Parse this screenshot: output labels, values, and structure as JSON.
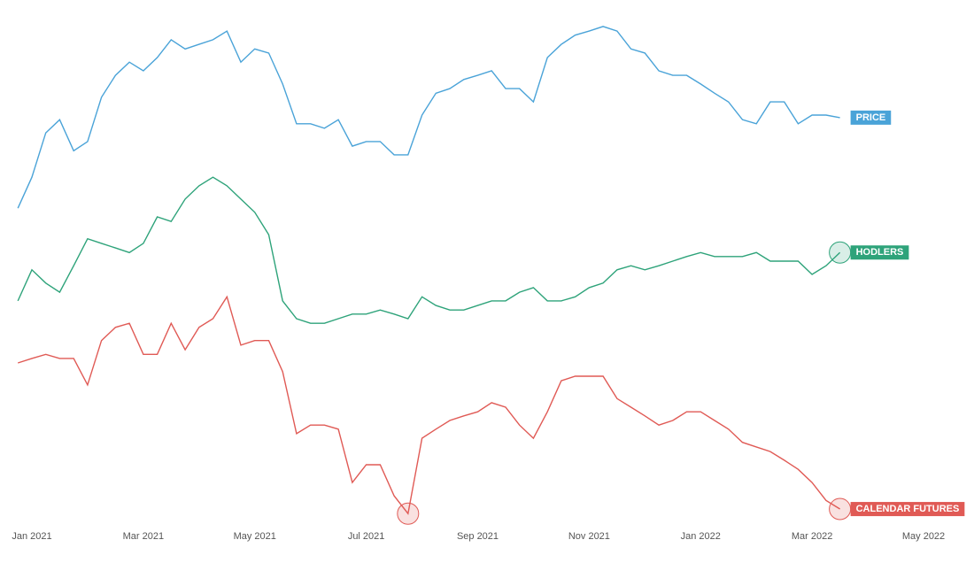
{
  "chart_data": {
    "type": "line",
    "x": [
      -0.25,
      0,
      0.25,
      0.5,
      0.75,
      1,
      1.25,
      1.5,
      1.75,
      2,
      2.25,
      2.5,
      2.75,
      3,
      3.25,
      3.5,
      3.75,
      4,
      4.25,
      4.5,
      4.75,
      5,
      5.25,
      5.5,
      5.75,
      6,
      6.25,
      6.5,
      6.75,
      7,
      7.25,
      7.5,
      7.75,
      8,
      8.25,
      8.5,
      8.75,
      9,
      9.25,
      9.5,
      9.75,
      10,
      10.25,
      10.5,
      10.75,
      11,
      11.25,
      11.5,
      11.75,
      12,
      12.25,
      12.5,
      12.75,
      13,
      13.25,
      13.5,
      13.75,
      14,
      14.25,
      14.5
    ],
    "xlim": [
      -0.5,
      16.5
    ],
    "xticks": [
      {
        "value": 0,
        "label": "Jan 2021"
      },
      {
        "value": 2,
        "label": "Mar 2021"
      },
      {
        "value": 4,
        "label": "May 2021"
      },
      {
        "value": 6,
        "label": "Jul 2021"
      },
      {
        "value": 8,
        "label": "Sep 2021"
      },
      {
        "value": 10,
        "label": "Nov 2021"
      },
      {
        "value": 12,
        "label": "Jan 2022"
      },
      {
        "value": 14,
        "label": "Mar 2022"
      },
      {
        "value": 16,
        "label": "May 2022"
      }
    ],
    "ylim": [
      0,
      100
    ],
    "series": [
      {
        "name": "PRICE",
        "color": "#4aa3d8",
        "highlight": [],
        "values": [
          61.7,
          67.8,
          76.5,
          79.1,
          73.0,
          74.8,
          83.5,
          87.8,
          90.4,
          88.7,
          91.3,
          94.8,
          93.0,
          93.9,
          94.8,
          96.5,
          90.4,
          93.0,
          92.2,
          86.1,
          78.3,
          78.3,
          77.4,
          79.1,
          73.9,
          74.8,
          74.8,
          72.2,
          72.2,
          80.0,
          84.3,
          85.2,
          87.0,
          87.8,
          88.7,
          85.2,
          85.2,
          82.6,
          91.3,
          93.9,
          95.7,
          96.5,
          97.4,
          96.5,
          93.0,
          92.2,
          88.7,
          87.8,
          87.8,
          86.1,
          84.3,
          82.6,
          79.1,
          78.3,
          82.6,
          82.6,
          78.3,
          80.0,
          80.0,
          79.5
        ]
      },
      {
        "name": "HODLERS",
        "color": "#2ea37a",
        "highlight": [
          "last"
        ],
        "values": [
          43.5,
          49.6,
          47.0,
          45.2,
          50.4,
          55.7,
          54.8,
          53.9,
          53.0,
          54.8,
          60.0,
          59.1,
          63.5,
          66.1,
          67.8,
          66.1,
          63.5,
          60.9,
          56.5,
          43.5,
          40.0,
          39.1,
          39.1,
          40.0,
          40.9,
          40.9,
          41.7,
          40.9,
          40.0,
          44.3,
          42.6,
          41.7,
          41.7,
          42.6,
          43.5,
          43.5,
          45.2,
          46.1,
          43.5,
          43.5,
          44.3,
          46.1,
          47.0,
          49.6,
          50.4,
          49.6,
          50.4,
          51.3,
          52.2,
          53.0,
          52.2,
          52.2,
          52.2,
          53.0,
          51.3,
          51.3,
          51.3,
          48.7,
          50.4,
          53.0
        ]
      },
      {
        "name": "CALENDAR FUTURES",
        "color": "#e05a55",
        "highlight": [
          "min",
          "last"
        ],
        "values": [
          31.3,
          32.2,
          33.0,
          32.2,
          32.2,
          27.0,
          35.7,
          38.3,
          39.1,
          33.0,
          33.0,
          39.1,
          33.9,
          38.3,
          40.0,
          44.3,
          34.8,
          35.7,
          35.7,
          29.6,
          17.4,
          19.1,
          19.1,
          18.3,
          7.8,
          11.3,
          11.3,
          5.2,
          1.7,
          16.5,
          18.3,
          20.0,
          20.9,
          21.7,
          23.5,
          22.6,
          19.1,
          16.5,
          21.7,
          27.8,
          28.7,
          28.7,
          28.7,
          24.3,
          22.6,
          20.9,
          19.1,
          20.0,
          21.7,
          21.7,
          20.0,
          18.3,
          15.7,
          14.8,
          13.9,
          12.2,
          10.4,
          7.8,
          4.3,
          2.6
        ]
      }
    ]
  }
}
